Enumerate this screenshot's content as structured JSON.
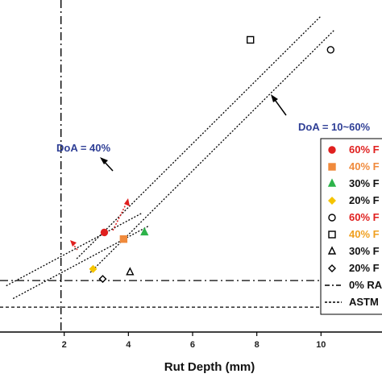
{
  "chart_data": {
    "type": "scatter",
    "title": "",
    "xlabel": "Rut Depth (mm)",
    "ylabel": "",
    "xlim": [
      0.0,
      11.9
    ],
    "ylim": [
      0,
      1
    ],
    "x_ticks": [
      "2",
      "4",
      "6",
      "8",
      "10"
    ],
    "grid": false,
    "legend_position": "right (partially cropped)",
    "series": [
      {
        "name": "60% F",
        "marker": "filled-circle",
        "color": "#e0201f",
        "points": [
          {
            "x": 3.25,
            "y": 0.3
          }
        ]
      },
      {
        "name": "40% F",
        "marker": "filled-square",
        "color": "#f08a3c",
        "points": [
          {
            "x": 3.85,
            "y": 0.28
          }
        ]
      },
      {
        "name": "30% F",
        "marker": "filled-triangle",
        "color": "#2db34a",
        "points": [
          {
            "x": 4.5,
            "y": 0.3
          }
        ]
      },
      {
        "name": "20% F",
        "marker": "filled-diamond",
        "color": "#f5c400",
        "points": [
          {
            "x": 2.9,
            "y": 0.19
          }
        ]
      },
      {
        "name": "60% F",
        "marker": "open-circle",
        "color": "#000000",
        "points": [
          {
            "x": 10.3,
            "y": 0.85
          }
        ]
      },
      {
        "name": "40% F",
        "marker": "open-square",
        "color": "#000000",
        "points": [
          {
            "x": 7.8,
            "y": 0.88
          }
        ]
      },
      {
        "name": "30% F",
        "marker": "open-triangle",
        "color": "#000000",
        "points": [
          {
            "x": 4.05,
            "y": 0.18
          }
        ]
      },
      {
        "name": "20% F",
        "marker": "open-diamond",
        "color": "#000000",
        "points": [
          {
            "x": 3.2,
            "y": 0.16
          }
        ]
      }
    ],
    "reference_lines": [
      {
        "name": "0% RA",
        "style": "dash-dot",
        "orientation": "horizontal",
        "y": 0.155
      },
      {
        "name": "ASTM",
        "style": "dashed",
        "orientation": "horizontal",
        "y": 0.075
      },
      {
        "style": "dash-dot",
        "orientation": "vertical",
        "x": 1.9
      },
      {
        "style": "dotted-band",
        "from": {
          "x": 2.6,
          "y": 0.2
        },
        "to": {
          "x": 10.2,
          "y": 0.93
        }
      },
      {
        "style": "dotted-band",
        "from": {
          "x": 0.3,
          "y": 0.12
        },
        "to": {
          "x": 4.55,
          "y": 0.34
        }
      }
    ],
    "annotations": [
      {
        "text": "DoA = 40%",
        "color": "#2f3f96",
        "x": 1.35,
        "y": 0.47
      },
      {
        "text": "DoA = 10~60%",
        "color": "#2f3f96",
        "x": 9.0,
        "y": 0.57
      }
    ],
    "colors": {
      "red": "#e0201f",
      "orange": "#f08a3c",
      "green": "#2db34a",
      "yellow": "#f5c400",
      "annotation": "#2f3f96",
      "arrow_red": "#e0201f"
    }
  }
}
